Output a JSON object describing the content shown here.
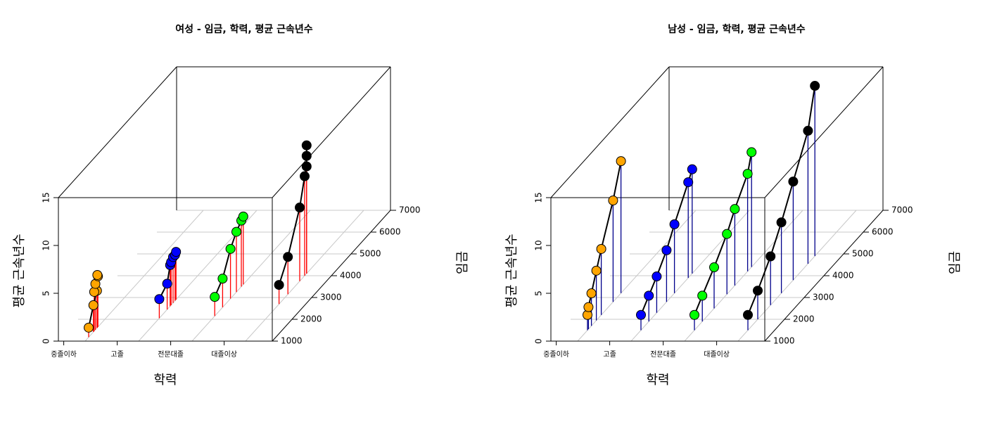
{
  "chart_data": [
    {
      "type": "scatter3d",
      "title": "여성 - 임금, 학력, 평균 근속년수",
      "xlabel": "학력",
      "ylabel": "임금",
      "zlabel": "평균 근속년수",
      "x_categories": [
        "중졸이하",
        "고졸",
        "전문대졸",
        "대졸이상"
      ],
      "xlim": [
        0.5,
        4.5
      ],
      "ylim": [
        1000,
        7000
      ],
      "zlim": [
        0,
        15
      ],
      "y_ticks": [
        1000,
        2000,
        3000,
        4000,
        5000,
        6000,
        7000
      ],
      "z_ticks": [
        0,
        5,
        10,
        15
      ],
      "grid": true,
      "drop_line_color": "#ff0000",
      "groups": [
        {
          "x": 1,
          "color": "#ffa500",
          "points": [
            [
              1180,
              1.0
            ],
            [
              1420,
              2.8
            ],
            [
              1600,
              3.9
            ],
            [
              1460,
              4.1
            ],
            [
              1520,
              4.8
            ],
            [
              1650,
              5.3
            ],
            [
              1620,
              5.5
            ]
          ]
        },
        {
          "x": 2,
          "color": "#0000ff",
          "points": [
            [
              2050,
              2.0
            ],
            [
              2450,
              2.7
            ],
            [
              2600,
              4.3
            ],
            [
              2650,
              4.5
            ],
            [
              2750,
              4.8
            ],
            [
              2850,
              4.8
            ],
            [
              2900,
              5.0
            ]
          ]
        },
        {
          "x": 3,
          "color": "#00ff00",
          "points": [
            [
              2150,
              2.0
            ],
            [
              2550,
              3.0
            ],
            [
              2950,
              5.2
            ],
            [
              3250,
              6.3
            ],
            [
              3500,
              6.9
            ],
            [
              3600,
              7.1
            ]
          ]
        },
        {
          "x": 4,
          "color": "#000000",
          "points": [
            [
              2700,
              2.0
            ],
            [
              3150,
              3.9
            ],
            [
              3750,
              7.7
            ],
            [
              4000,
              10.4
            ],
            [
              4100,
              11.2
            ],
            [
              4100,
              12.3
            ],
            [
              4100,
              13.4
            ]
          ]
        }
      ]
    },
    {
      "type": "scatter3d",
      "title": "남성 - 임금, 학력, 평균 근속년수",
      "xlabel": "학력",
      "ylabel": "임금",
      "zlabel": "평균 근속년수",
      "x_categories": [
        "중졸이하",
        "고졸",
        "전문대졸",
        "대졸이상"
      ],
      "xlim": [
        0.5,
        4.5
      ],
      "ylim": [
        1000,
        7000
      ],
      "zlim": [
        0,
        15
      ],
      "y_ticks": [
        1000,
        2000,
        3000,
        4000,
        5000,
        6000,
        7000
      ],
      "z_ticks": [
        0,
        5,
        10,
        15
      ],
      "grid": true,
      "drop_line_color": "#00008b",
      "groups": [
        {
          "x": 1,
          "color": "#ffa500",
          "points": [
            [
              1500,
              1.6
            ],
            [
              1550,
              2.3
            ],
            [
              1700,
              3.4
            ],
            [
              1950,
              5.2
            ],
            [
              2200,
              6.9
            ],
            [
              2800,
              10.6
            ],
            [
              3200,
              13.8
            ]
          ]
        },
        {
          "x": 2,
          "color": "#0000ff",
          "points": [
            [
              1500,
              1.6
            ],
            [
              1900,
              2.7
            ],
            [
              2300,
              3.8
            ],
            [
              2800,
              5.4
            ],
            [
              3200,
              7.2
            ],
            [
              3900,
              10.0
            ],
            [
              4100,
              10.9
            ]
          ]
        },
        {
          "x": 3,
          "color": "#00ff00",
          "points": [
            [
              1500,
              1.6
            ],
            [
              1900,
              2.7
            ],
            [
              2500,
              4.3
            ],
            [
              3150,
              6.3
            ],
            [
              3550,
              8.0
            ],
            [
              4200,
              10.2
            ],
            [
              4400,
              12.0
            ]
          ]
        },
        {
          "x": 4,
          "color": "#000000",
          "points": [
            [
              1500,
              1.6
            ],
            [
              2000,
              3.0
            ],
            [
              2650,
              5.1
            ],
            [
              3200,
              7.4
            ],
            [
              3800,
              10.3
            ],
            [
              4550,
              13.9
            ],
            [
              4900,
              17.8
            ]
          ]
        }
      ]
    }
  ]
}
